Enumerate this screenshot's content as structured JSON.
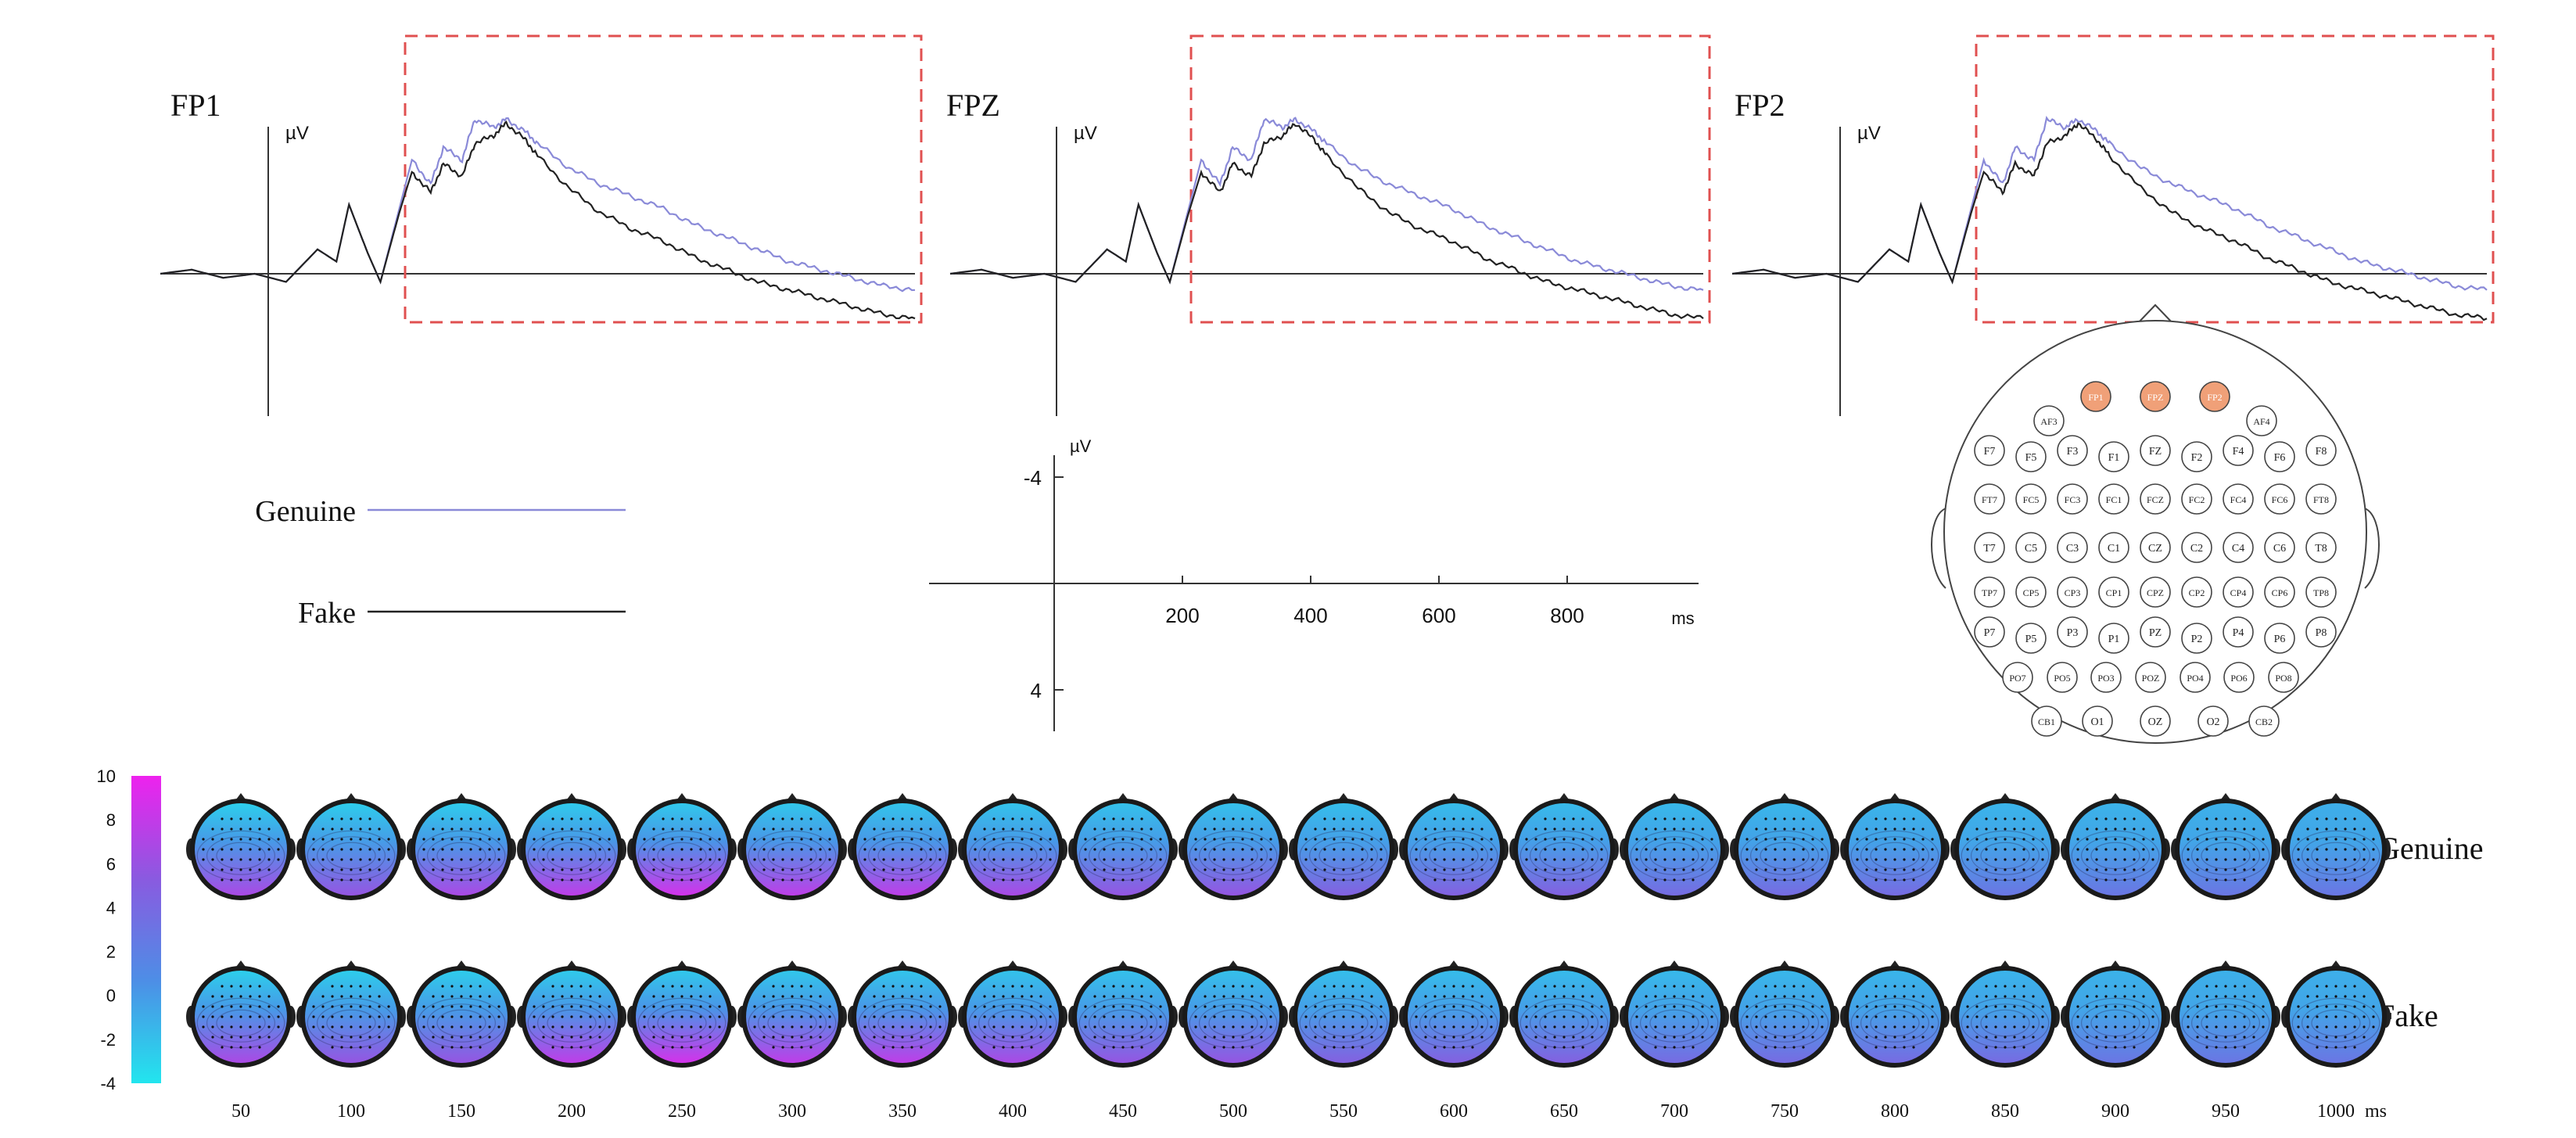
{
  "chart_data": [
    {
      "type": "line",
      "panel": "erp-channels",
      "unit": "µV",
      "channels": [
        "FP1",
        "FPZ",
        "FP2"
      ],
      "x_unit": "ms",
      "xlim": [
        -200,
        1000
      ],
      "ylim": [
        -4,
        4
      ],
      "y_axis_inverted": true,
      "x_ticks": [
        200,
        400,
        600,
        800
      ],
      "y_ticks": [
        -4,
        4
      ],
      "highlight_window_ms": [
        200,
        1000
      ],
      "x": [
        -200,
        -150,
        -100,
        -50,
        0,
        50,
        80,
        100,
        130,
        150,
        180,
        200,
        230,
        250,
        280,
        300,
        330,
        350,
        380,
        400,
        450,
        500,
        550,
        600,
        650,
        700,
        750,
        800,
        850,
        900,
        950,
        1000
      ],
      "series": [
        {
          "name": "Genuine",
          "color": "#8a8ad8",
          "values": [
            0.0,
            0.1,
            -0.1,
            0.0,
            -0.2,
            0.6,
            0.3,
            1.7,
            0.5,
            -0.2,
            1.6,
            2.8,
            2.2,
            3.1,
            2.8,
            3.8,
            3.6,
            3.8,
            3.5,
            3.2,
            2.6,
            2.2,
            1.9,
            1.6,
            1.2,
            0.9,
            0.6,
            0.3,
            0.1,
            -0.1,
            -0.3,
            -0.4
          ]
        },
        {
          "name": "Fake",
          "color": "#222222",
          "values": [
            0.0,
            0.1,
            -0.1,
            0.0,
            -0.2,
            0.6,
            0.3,
            1.7,
            0.5,
            -0.2,
            1.5,
            2.5,
            2.0,
            2.7,
            2.4,
            3.2,
            3.4,
            3.7,
            3.3,
            2.9,
            2.1,
            1.5,
            1.1,
            0.8,
            0.4,
            0.1,
            -0.2,
            -0.4,
            -0.6,
            -0.8,
            -1.0,
            -1.1
          ]
        }
      ],
      "scale_bar": {
        "unit": "µV",
        "x_unit": "ms",
        "x_ticks": [
          200,
          400,
          600,
          800
        ],
        "y_ticks": [
          -4,
          4
        ]
      }
    },
    {
      "type": "heatmap",
      "panel": "topographic-maps",
      "colorbar": {
        "min": -4,
        "max": 10,
        "ticks": [
          10,
          8,
          6,
          4,
          2,
          0,
          -2,
          -4
        ],
        "colors": [
          "#22e5ee",
          "#4d8ee6",
          "#8a5ae0",
          "#ee22ee"
        ]
      },
      "x_unit": "ms",
      "times": [
        50,
        100,
        150,
        200,
        250,
        300,
        350,
        400,
        450,
        500,
        550,
        600,
        650,
        700,
        750,
        800,
        850,
        900,
        950,
        1000
      ],
      "rows": [
        {
          "label": "Genuine",
          "posterior_level": [
            7,
            6,
            7,
            8,
            9,
            8,
            8,
            7,
            6,
            6,
            5,
            5,
            5,
            4,
            4,
            4,
            3,
            3,
            3,
            3
          ]
        },
        {
          "label": "Fake",
          "posterior_level": [
            7,
            6,
            6,
            8,
            9,
            8,
            8,
            7,
            6,
            6,
            5,
            5,
            5,
            4,
            4,
            4,
            4,
            3,
            3,
            3
          ]
        }
      ]
    }
  ],
  "legend": [
    {
      "label": "Genuine",
      "color": "#8a8ad8"
    },
    {
      "label": "Fake",
      "color": "#222222"
    }
  ],
  "montage": {
    "highlight_color": "#f0a078",
    "highlighted": [
      "FP1",
      "FPZ",
      "FP2"
    ],
    "rows": [
      [
        "FP1",
        "FPZ",
        "FP2"
      ],
      [
        "AF3",
        "AF4"
      ],
      [
        "F7",
        "F5",
        "F3",
        "F1",
        "FZ",
        "F2",
        "F4",
        "F6",
        "F8"
      ],
      [
        "FT7",
        "FC5",
        "FC3",
        "FC1",
        "FCZ",
        "FC2",
        "FC4",
        "FC6",
        "FT8"
      ],
      [
        "T7",
        "C5",
        "C3",
        "C1",
        "CZ",
        "C2",
        "C4",
        "C6",
        "T8"
      ],
      [
        "TP7",
        "CP5",
        "CP3",
        "CP1",
        "CPZ",
        "CP2",
        "CP4",
        "CP6",
        "TP8"
      ],
      [
        "P7",
        "P5",
        "P3",
        "P1",
        "PZ",
        "P2",
        "P4",
        "P6",
        "P8"
      ],
      [
        "PO7",
        "PO5",
        "PO3",
        "POZ",
        "PO4",
        "PO6",
        "PO8"
      ],
      [
        "CB1",
        "O1",
        "OZ",
        "O2",
        "CB2"
      ]
    ]
  }
}
